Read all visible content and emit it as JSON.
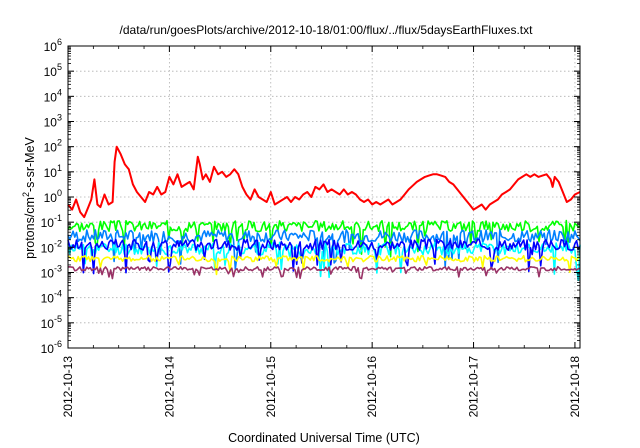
{
  "chart_data": {
    "type": "line",
    "title": "/data/run/goesPlots/archive/2012-10-18/01:00/flux/../flux/5daysEarthFluxes.txt",
    "xlabel": "Coordinated Universal Time (UTC)",
    "ylabel": {
      "base": "protons/cm",
      "sup": "2",
      "rest": "-s-sr-MeV"
    },
    "y_scale": "log",
    "ylim_exponents": [
      -6,
      6
    ],
    "y_ticks": [
      {
        "base": "10",
        "exp": "6"
      },
      {
        "base": "10",
        "exp": "5"
      },
      {
        "base": "10",
        "exp": "4"
      },
      {
        "base": "10",
        "exp": "3"
      },
      {
        "base": "10",
        "exp": "2"
      },
      {
        "base": "10",
        "exp": "1"
      },
      {
        "base": "10",
        "exp": "0"
      },
      {
        "base": "10",
        "exp": "-1"
      },
      {
        "base": "10",
        "exp": "-2"
      },
      {
        "base": "10",
        "exp": "-3"
      },
      {
        "base": "10",
        "exp": "-4"
      },
      {
        "base": "10",
        "exp": "-5"
      },
      {
        "base": "10",
        "exp": "-6"
      }
    ],
    "x_ticks": [
      "2012-10-13",
      "2012-10-14",
      "2012-10-15",
      "2012-10-16",
      "2012-10-17",
      "2012-10-18"
    ],
    "xlim_days": [
      0,
      5.05
    ],
    "grid": true,
    "legend": "none",
    "series_colors": [
      "#ff0000",
      "#00ff00",
      "#0080ff",
      "#00ffff",
      "#0000ff",
      "#ffff00",
      "#993366"
    ],
    "series": [
      {
        "color": "#ff0000",
        "points": [
          [
            0.0,
            -0.3
          ],
          [
            0.04,
            -0.5
          ],
          [
            0.08,
            -0.1
          ],
          [
            0.12,
            -0.6
          ],
          [
            0.16,
            -0.8
          ],
          [
            0.2,
            -0.4
          ],
          [
            0.23,
            -0.1
          ],
          [
            0.26,
            0.7
          ],
          [
            0.29,
            -0.3
          ],
          [
            0.32,
            -0.4
          ],
          [
            0.36,
            0.1
          ],
          [
            0.4,
            -0.3
          ],
          [
            0.44,
            -0.2
          ],
          [
            0.46,
            1.4
          ],
          [
            0.48,
            2.0
          ],
          [
            0.52,
            1.7
          ],
          [
            0.56,
            1.3
          ],
          [
            0.6,
            1.1
          ],
          [
            0.64,
            0.5
          ],
          [
            0.68,
            0.2
          ],
          [
            0.72,
            0.0
          ],
          [
            0.76,
            -0.2
          ],
          [
            0.8,
            0.2
          ],
          [
            0.84,
            0.1
          ],
          [
            0.88,
            0.4
          ],
          [
            0.92,
            0.1
          ],
          [
            0.96,
            0.2
          ],
          [
            1.0,
            0.8
          ],
          [
            1.04,
            0.5
          ],
          [
            1.08,
            0.9
          ],
          [
            1.12,
            0.4
          ],
          [
            1.16,
            0.5
          ],
          [
            1.2,
            0.6
          ],
          [
            1.24,
            0.3
          ],
          [
            1.28,
            1.6
          ],
          [
            1.3,
            1.3
          ],
          [
            1.33,
            0.7
          ],
          [
            1.36,
            0.9
          ],
          [
            1.4,
            0.6
          ],
          [
            1.44,
            1.2
          ],
          [
            1.48,
            0.9
          ],
          [
            1.52,
            1.0
          ],
          [
            1.56,
            0.8
          ],
          [
            1.6,
            0.9
          ],
          [
            1.64,
            1.1
          ],
          [
            1.68,
            0.9
          ],
          [
            1.72,
            0.4
          ],
          [
            1.76,
            0.1
          ],
          [
            1.8,
            -0.1
          ],
          [
            1.84,
            0.3
          ],
          [
            1.88,
            0.0
          ],
          [
            1.92,
            -0.1
          ],
          [
            1.96,
            -0.2
          ],
          [
            2.0,
            0.2
          ],
          [
            2.04,
            -0.3
          ],
          [
            2.08,
            -0.2
          ],
          [
            2.12,
            -0.1
          ],
          [
            2.16,
            0.0
          ],
          [
            2.2,
            -0.2
          ],
          [
            2.24,
            0.0
          ],
          [
            2.28,
            -0.1
          ],
          [
            2.32,
            0.1
          ],
          [
            2.36,
            0.2
          ],
          [
            2.4,
            0.0
          ],
          [
            2.44,
            0.4
          ],
          [
            2.48,
            0.3
          ],
          [
            2.52,
            0.5
          ],
          [
            2.56,
            0.2
          ],
          [
            2.6,
            0.3
          ],
          [
            2.64,
            0.2
          ],
          [
            2.68,
            0.1
          ],
          [
            2.72,
            0.3
          ],
          [
            2.76,
            0.1
          ],
          [
            2.8,
            0.2
          ],
          [
            2.84,
            0.1
          ],
          [
            2.88,
            -0.1
          ],
          [
            2.92,
            -0.2
          ],
          [
            2.96,
            -0.1
          ],
          [
            3.0,
            -0.3
          ],
          [
            3.04,
            -0.2
          ],
          [
            3.08,
            -0.3
          ],
          [
            3.12,
            -0.2
          ],
          [
            3.16,
            -0.1
          ],
          [
            3.2,
            -0.3
          ],
          [
            3.24,
            -0.2
          ],
          [
            3.28,
            -0.1
          ],
          [
            3.32,
            0.1
          ],
          [
            3.36,
            0.3
          ],
          [
            3.4,
            0.45
          ],
          [
            3.44,
            0.6
          ],
          [
            3.48,
            0.7
          ],
          [
            3.52,
            0.8
          ],
          [
            3.56,
            0.85
          ],
          [
            3.6,
            0.9
          ],
          [
            3.64,
            0.9
          ],
          [
            3.68,
            0.85
          ],
          [
            3.72,
            0.8
          ],
          [
            3.76,
            0.6
          ],
          [
            3.8,
            0.5
          ],
          [
            3.84,
            0.3
          ],
          [
            3.88,
            0.1
          ],
          [
            3.92,
            -0.1
          ],
          [
            3.96,
            -0.3
          ],
          [
            4.0,
            -0.5
          ],
          [
            4.04,
            -0.4
          ],
          [
            4.08,
            -0.3
          ],
          [
            4.12,
            -0.5
          ],
          [
            4.16,
            -0.3
          ],
          [
            4.2,
            -0.2
          ],
          [
            4.24,
            -0.1
          ],
          [
            4.28,
            0.1
          ],
          [
            4.32,
            0.2
          ],
          [
            4.36,
            0.3
          ],
          [
            4.4,
            0.5
          ],
          [
            4.44,
            0.7
          ],
          [
            4.48,
            0.8
          ],
          [
            4.52,
            0.9
          ],
          [
            4.56,
            0.8
          ],
          [
            4.6,
            0.9
          ],
          [
            4.64,
            0.8
          ],
          [
            4.68,
            0.85
          ],
          [
            4.72,
            0.9
          ],
          [
            4.76,
            0.7
          ],
          [
            4.78,
            0.4
          ],
          [
            4.8,
            0.8
          ],
          [
            4.84,
            0.6
          ],
          [
            4.88,
            0.2
          ],
          [
            4.92,
            -0.2
          ],
          [
            4.96,
            -0.1
          ],
          [
            5.0,
            0.1
          ],
          [
            5.05,
            0.2
          ]
        ]
      },
      {
        "color": "#00ff00",
        "base": -1.15,
        "amp": 0.22,
        "seed": 3
      },
      {
        "color": "#0080ff",
        "base": -1.55,
        "amp": 0.25,
        "seed": 7
      },
      {
        "color": "#00ffff",
        "base": -2.05,
        "amp": 0.25,
        "seed": 11
      },
      {
        "color": "#0000ff",
        "base": -1.9,
        "amp": 0.22,
        "seed": 17
      },
      {
        "color": "#ffff00",
        "base": -2.45,
        "amp": 0.12,
        "seed": 23
      },
      {
        "color": "#993366",
        "base": -2.85,
        "amp": 0.08,
        "seed": 29
      }
    ]
  }
}
